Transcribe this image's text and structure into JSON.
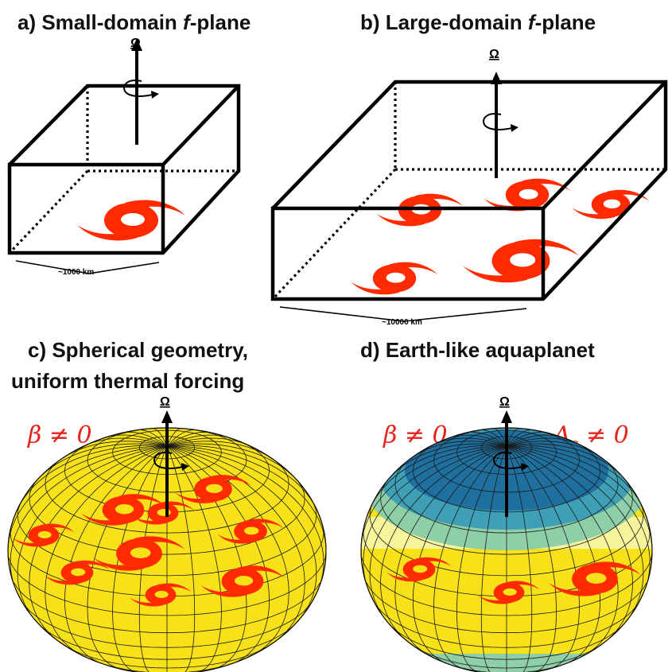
{
  "panels": {
    "a": {
      "title_prefix": "a) Small-domain ",
      "title_italic": "f",
      "title_suffix": "-plane",
      "scale_label": "~1000 km"
    },
    "b": {
      "title_prefix": "b) Large-domain ",
      "title_italic": "f",
      "title_suffix": "-plane",
      "scale_label": "~10000 km"
    },
    "c": {
      "title_line1": "c) Spherical geometry,",
      "title_line2": "uniform thermal forcing",
      "beta_label": "β ≠ 0"
    },
    "d": {
      "title": "d) Earth-like aquaplanet",
      "beta_label": "β ≠ 0",
      "delta_label": "Δ",
      "delta_sub": "s",
      "delta_tail": " ≠ 0"
    }
  },
  "omega_symbol": "Ω",
  "colors": {
    "cyclone": "#ff2a00",
    "planet_yellow": "#f7e21a",
    "polar_dark": "#1f6f9f",
    "polar_mid": "#3f9fb5",
    "polar_light": "#8fcfa8",
    "band_pale": "#f6f59c",
    "frame": "#000000"
  },
  "icons": [
    "rotation-axis-icon",
    "cyclone-icon",
    "planet-sphere-icon"
  ]
}
